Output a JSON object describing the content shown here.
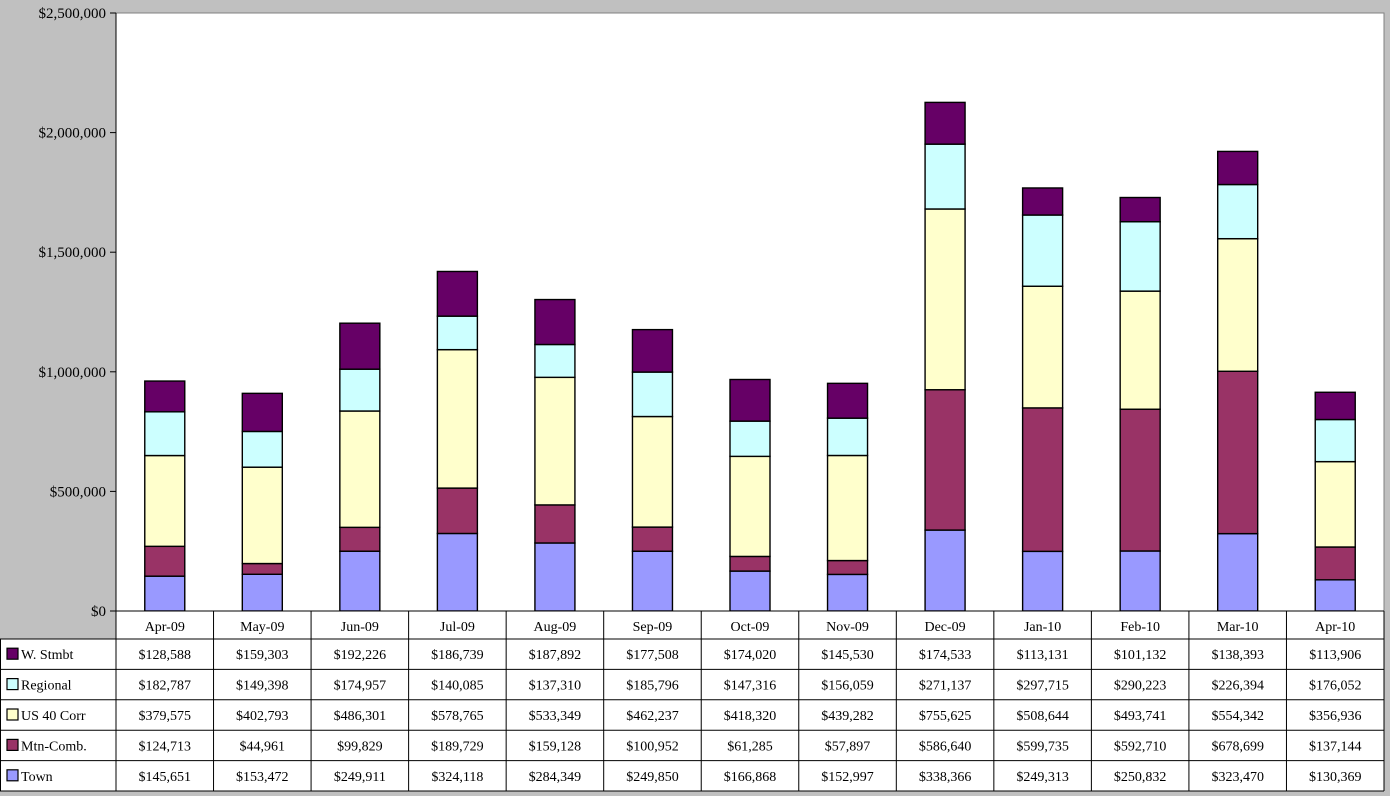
{
  "chart_data": {
    "type": "bar",
    "stacked": true,
    "title": "",
    "xlabel": "",
    "ylabel": "",
    "ylim": [
      0,
      2500000
    ],
    "y_ticks": [
      0,
      500000,
      1000000,
      1500000,
      2000000,
      2500000
    ],
    "y_tick_labels": [
      "$0",
      "$500,000",
      "$1,000,000",
      "$1,500,000",
      "$2,000,000",
      "$2,500,000"
    ],
    "grid": false,
    "legend": "data table",
    "categories": [
      "Apr-09",
      "May-09",
      "Jun-09",
      "Jul-09",
      "Aug-09",
      "Sep-09",
      "Oct-09",
      "Nov-09",
      "Dec-09",
      "Jan-10",
      "Feb-10",
      "Mar-10",
      "Apr-10"
    ],
    "series": [
      {
        "name": "Town",
        "color": "#9999ff",
        "values": [
          145651,
          153472,
          249911,
          324118,
          284349,
          249850,
          166868,
          152997,
          338366,
          249313,
          250832,
          323470,
          130369
        ],
        "labels": [
          "$145,651",
          "$153,472",
          "$249,911",
          "$324,118",
          "$284,349",
          "$249,850",
          "$166,868",
          "$152,997",
          "$338,366",
          "$249,313",
          "$250,832",
          "$323,470",
          "$130,369"
        ]
      },
      {
        "name": "Mtn-Comb.",
        "color": "#993366",
        "values": [
          124713,
          44961,
          99829,
          189729,
          159128,
          100952,
          61285,
          57897,
          586640,
          599735,
          592710,
          678699,
          137144
        ],
        "labels": [
          "$124,713",
          "$44,961",
          "$99,829",
          "$189,729",
          "$159,128",
          "$100,952",
          "$61,285",
          "$57,897",
          "$586,640",
          "$599,735",
          "$592,710",
          "$678,699",
          "$137,144"
        ]
      },
      {
        "name": "US 40 Corr",
        "color": "#ffffcc",
        "values": [
          379575,
          402793,
          486301,
          578765,
          533349,
          462237,
          418320,
          439282,
          755625,
          508644,
          493741,
          554342,
          356936
        ],
        "labels": [
          "$379,575",
          "$402,793",
          "$486,301",
          "$578,765",
          "$533,349",
          "$462,237",
          "$418,320",
          "$439,282",
          "$755,625",
          "$508,644",
          "$493,741",
          "$554,342",
          "$356,936"
        ]
      },
      {
        "name": "Regional",
        "color": "#ccffff",
        "values": [
          182787,
          149398,
          174957,
          140085,
          137310,
          185796,
          147316,
          156059,
          271137,
          297715,
          290223,
          226394,
          176052
        ],
        "labels": [
          "$182,787",
          "$149,398",
          "$174,957",
          "$140,085",
          "$137,310",
          "$185,796",
          "$147,316",
          "$156,059",
          "$271,137",
          "$297,715",
          "$290,223",
          "$226,394",
          "$176,052"
        ]
      },
      {
        "name": "W. Stmbt",
        "color": "#660066",
        "values": [
          128588,
          159303,
          192226,
          186739,
          187892,
          177508,
          174020,
          145530,
          174533,
          113131,
          101132,
          138393,
          113906
        ],
        "labels": [
          "$128,588",
          "$159,303",
          "$192,226",
          "$186,739",
          "$187,892",
          "$177,508",
          "$174,020",
          "$145,530",
          "$174,533",
          "$113,131",
          "$101,132",
          "$138,393",
          "$113,906"
        ]
      }
    ],
    "table_row_order": [
      "W. Stmbt",
      "Regional",
      "US 40 Corr",
      "Mtn-Comb.",
      "Town"
    ]
  }
}
